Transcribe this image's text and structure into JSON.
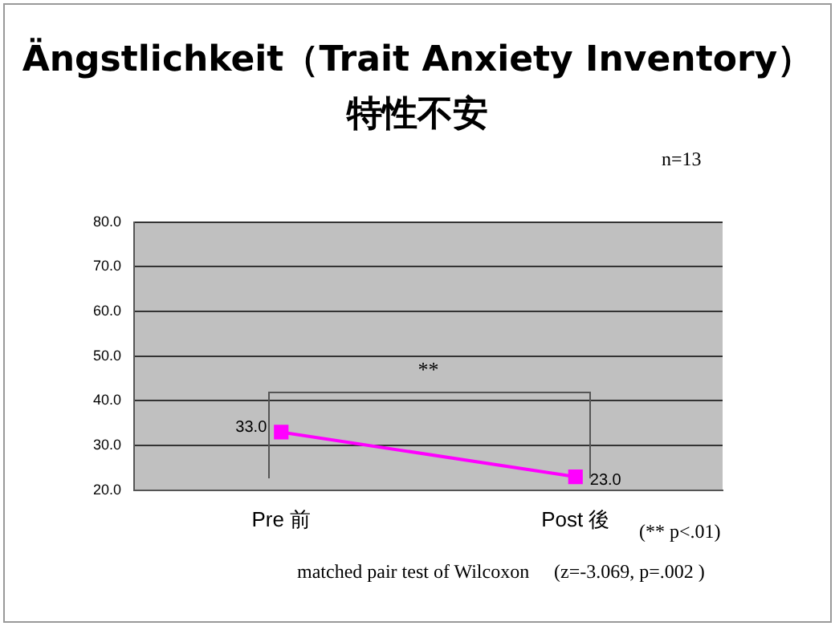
{
  "chart_data": {
    "type": "line",
    "title": "Ängstlichkeit（Trait Anxiety Inventory）",
    "subtitle": "特性不安",
    "categories": [
      "Pre 前",
      "Post 後"
    ],
    "series": [
      {
        "color": "#ff00ff",
        "values": [
          33.0,
          23.0
        ],
        "value_labels": [
          "33.0",
          "23.0"
        ]
      }
    ],
    "ylim": [
      20,
      80
    ],
    "yticks": [
      {
        "value": 20,
        "label": "20.0"
      },
      {
        "value": 30,
        "label": "30.0"
      },
      {
        "value": 40,
        "label": "40.0"
      },
      {
        "value": 50,
        "label": "50.0"
      },
      {
        "value": 60,
        "label": "60.0"
      },
      {
        "value": 70,
        "label": "70.0"
      },
      {
        "value": 80,
        "label": "80.0"
      }
    ],
    "grid": "y",
    "marker": "square",
    "legend": false,
    "annotations": [
      "n=13",
      "**",
      "(** p<.01)",
      "matched pair test of Wilcoxon",
      "(z=-3.069, p=.002 )"
    ]
  }
}
